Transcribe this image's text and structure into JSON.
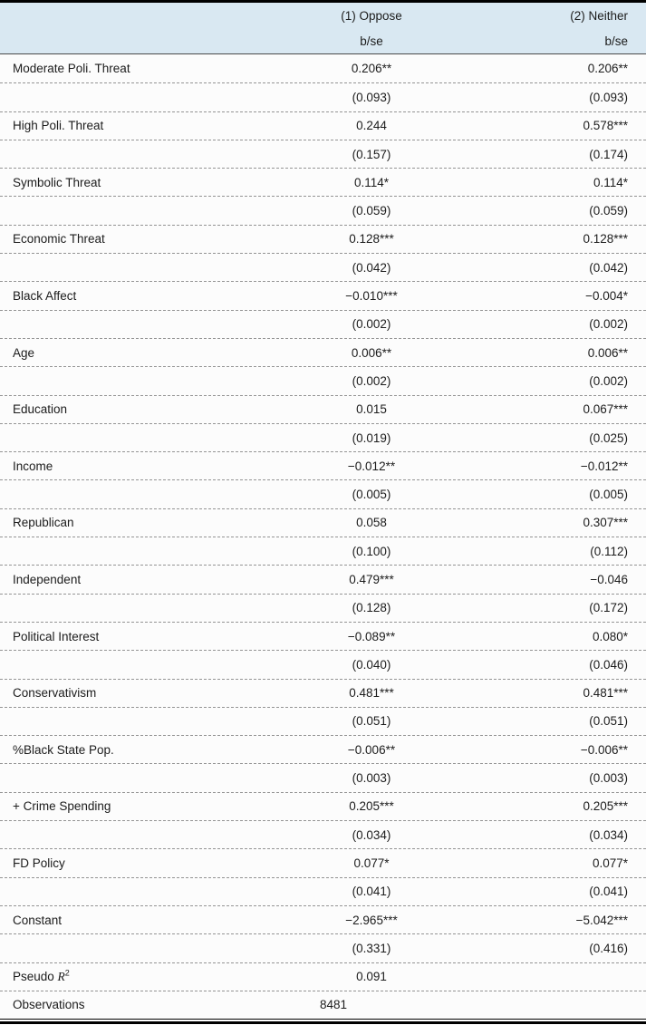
{
  "table": {
    "header": {
      "col1": "(1) Oppose",
      "col2": "(2) Neither",
      "sub1": "b/se",
      "sub2": "b/se"
    },
    "rows": [
      {
        "label": "Moderate Poli. Threat",
        "b1": "0.206**",
        "b2": "0.206**",
        "se1": "(0.093)",
        "se2": "(0.093)"
      },
      {
        "label": "High Poli. Threat",
        "b1": "0.244",
        "b2": "0.578***",
        "se1": "(0.157)",
        "se2": "(0.174)"
      },
      {
        "label": "Symbolic Threat",
        "b1": "0.114*",
        "b2": "0.114*",
        "se1": "(0.059)",
        "se2": "(0.059)"
      },
      {
        "label": "Economic Threat",
        "b1": "0.128***",
        "b2": "0.128***",
        "se1": "(0.042)",
        "se2": "(0.042)"
      },
      {
        "label": "Black Affect",
        "b1": "−0.010***",
        "b2": "−0.004*",
        "se1": "(0.002)",
        "se2": "(0.002)"
      },
      {
        "label": "Age",
        "b1": "0.006**",
        "b2": "0.006**",
        "se1": "(0.002)",
        "se2": "(0.002)"
      },
      {
        "label": "Education",
        "b1": "0.015",
        "b2": "0.067***",
        "se1": "(0.019)",
        "se2": "(0.025)"
      },
      {
        "label": "Income",
        "b1": "−0.012**",
        "b2": "−0.012**",
        "se1": "(0.005)",
        "se2": "(0.005)"
      },
      {
        "label": "Republican",
        "b1": "0.058",
        "b2": "0.307***",
        "se1": "(0.100)",
        "se2": "(0.112)"
      },
      {
        "label": "Independent",
        "b1": "0.479***",
        "b2": "−0.046",
        "se1": "(0.128)",
        "se2": "(0.172)"
      },
      {
        "label": "Political Interest",
        "b1": "−0.089**",
        "b2": "0.080*",
        "se1": "(0.040)",
        "se2": "(0.046)"
      },
      {
        "label": "Conservativism",
        "b1": "0.481***",
        "b2": "0.481***",
        "se1": "(0.051)",
        "se2": "(0.051)"
      },
      {
        "label": "%Black State Pop.",
        "b1": "−0.006**",
        "b2": "−0.006**",
        "se1": "(0.003)",
        "se2": "(0.003)"
      },
      {
        "label": "+ Crime Spending",
        "b1": "0.205***",
        "b2": "0.205***",
        "se1": "(0.034)",
        "se2": "(0.034)"
      },
      {
        "label": "FD Policy",
        "b1": "0.077*",
        "b2": "0.077*",
        "se1": "(0.041)",
        "se2": "(0.041)"
      },
      {
        "label": "Constant",
        "b1": "−2.965***",
        "b2": "−5.042***",
        "se1": "(0.331)",
        "se2": "(0.416)"
      }
    ],
    "stats": {
      "pseudo_r2": {
        "prefix": "Pseudo ",
        "symbol": "R",
        "sup": "2",
        "value": "0.091"
      },
      "observations": {
        "label": "Observations",
        "value": "8481"
      }
    }
  }
}
